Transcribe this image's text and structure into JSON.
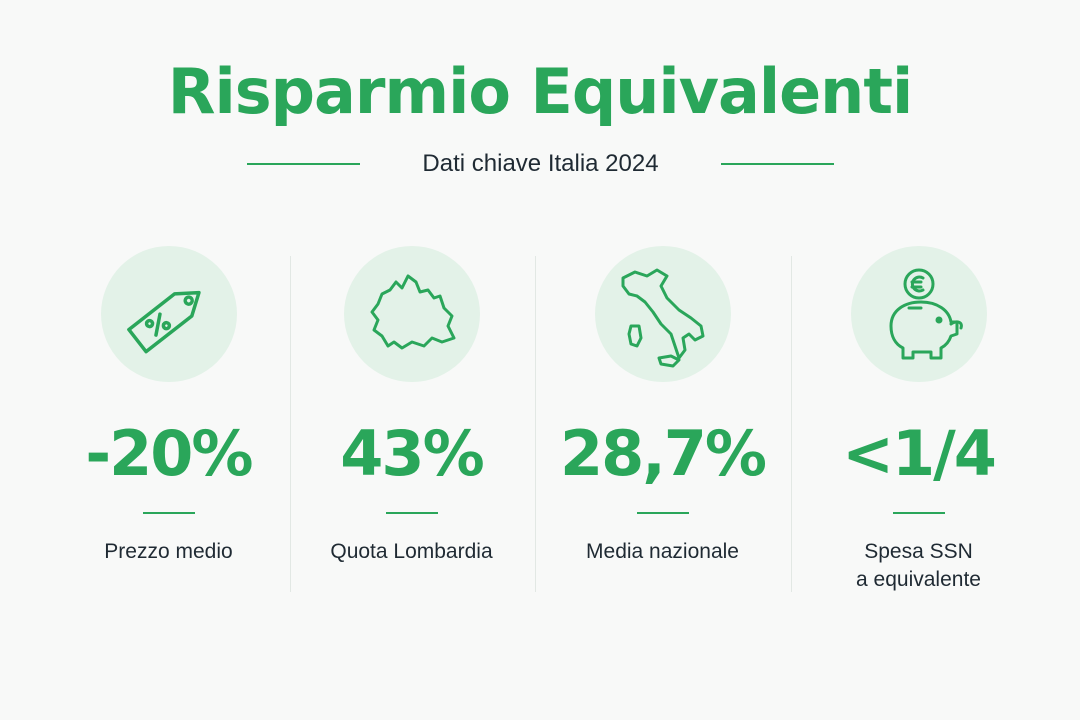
{
  "title": "Risparmio Equivalenti",
  "subtitle": "Dati chiave Italia 2024",
  "accent_color": "#2aa65a",
  "icon_bg_color": "#e3f2e8",
  "stats": [
    {
      "icon": "price-tag-percent-icon",
      "value": "-20%",
      "label": "Prezzo medio"
    },
    {
      "icon": "lombardia-map-icon",
      "value": "43%",
      "label": "Quota Lombardia"
    },
    {
      "icon": "italy-map-icon",
      "value": "28,7%",
      "label": "Media nazionale"
    },
    {
      "icon": "piggy-bank-euro-icon",
      "value": "<1/4",
      "label": "Spesa SSN\na equivalente"
    }
  ]
}
